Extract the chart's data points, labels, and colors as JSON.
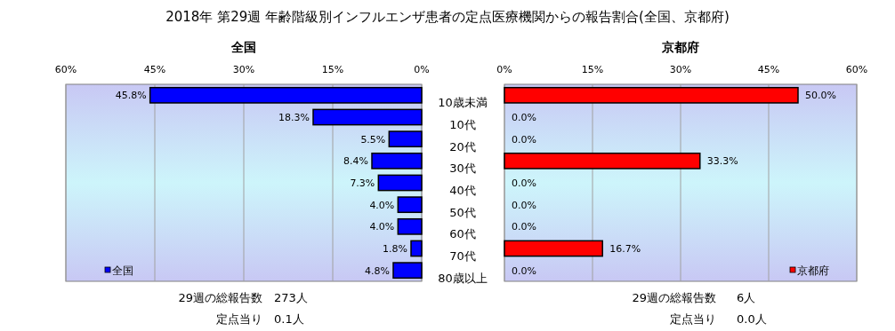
{
  "chart_data": [
    {
      "type": "bar",
      "orientation": "horizontal",
      "title": "2018年 第29週 年齢階級別インフルエンザ患者の定点医療機関からの報告割合(全国、京都府)",
      "subtitle": "全国",
      "categories": [
        "10歳未満",
        "10代",
        "20代",
        "30代",
        "40代",
        "50代",
        "60代",
        "70代",
        "80歳以上"
      ],
      "series": [
        {
          "name": "全国",
          "color": "#0000ff",
          "values": [
            45.8,
            18.3,
            5.5,
            8.4,
            7.3,
            4.0,
            4.0,
            1.8,
            4.8
          ],
          "value_labels": [
            "45.8%",
            "18.3%",
            "5.5%",
            "8.4%",
            "7.3%",
            "4.0%",
            "4.0%",
            "1.8%",
            "4.8%"
          ]
        }
      ],
      "xlim": [
        60,
        0
      ],
      "xticks": [
        {
          "value": 60,
          "label": "60%"
        },
        {
          "value": 45,
          "label": "45%"
        },
        {
          "value": 30,
          "label": "30%"
        },
        {
          "value": 15,
          "label": "15%"
        },
        {
          "value": 0,
          "label": "0%"
        }
      ],
      "grid": "x",
      "legend": "bottom left",
      "annotations": [
        "29週の総報告数",
        "273人",
        "定点当り",
        "0.1人"
      ]
    },
    {
      "type": "bar",
      "orientation": "horizontal",
      "subtitle": "京都府",
      "categories": [
        null,
        null,
        null,
        null,
        null,
        null,
        null,
        null,
        null
      ],
      "series": [
        {
          "name": "京都府",
          "color": "#ff0000",
          "values": [
            50.0,
            0.0,
            0.0,
            33.3,
            0.0,
            0.0,
            0.0,
            16.7,
            0.0
          ],
          "value_labels": [
            "50.0%",
            "0.0%",
            "0.0%",
            "33.3%",
            "0.0%",
            "0.0%",
            "0.0%",
            "16.7%",
            "0.0%"
          ]
        }
      ],
      "xlim": [
        0,
        60
      ],
      "xticks": [
        {
          "value": 0,
          "label": "0%"
        },
        {
          "value": 15,
          "label": "15%"
        },
        {
          "value": 30,
          "label": "30%"
        },
        {
          "value": 45,
          "label": "45%"
        },
        {
          "value": 60,
          "label": "60%"
        }
      ],
      "grid": "x",
      "legend": "bottom right",
      "tick_labels": "x",
      "annotations": [
        "29週の総報告数",
        "6人",
        "定点当り",
        "0.0人"
      ]
    }
  ]
}
